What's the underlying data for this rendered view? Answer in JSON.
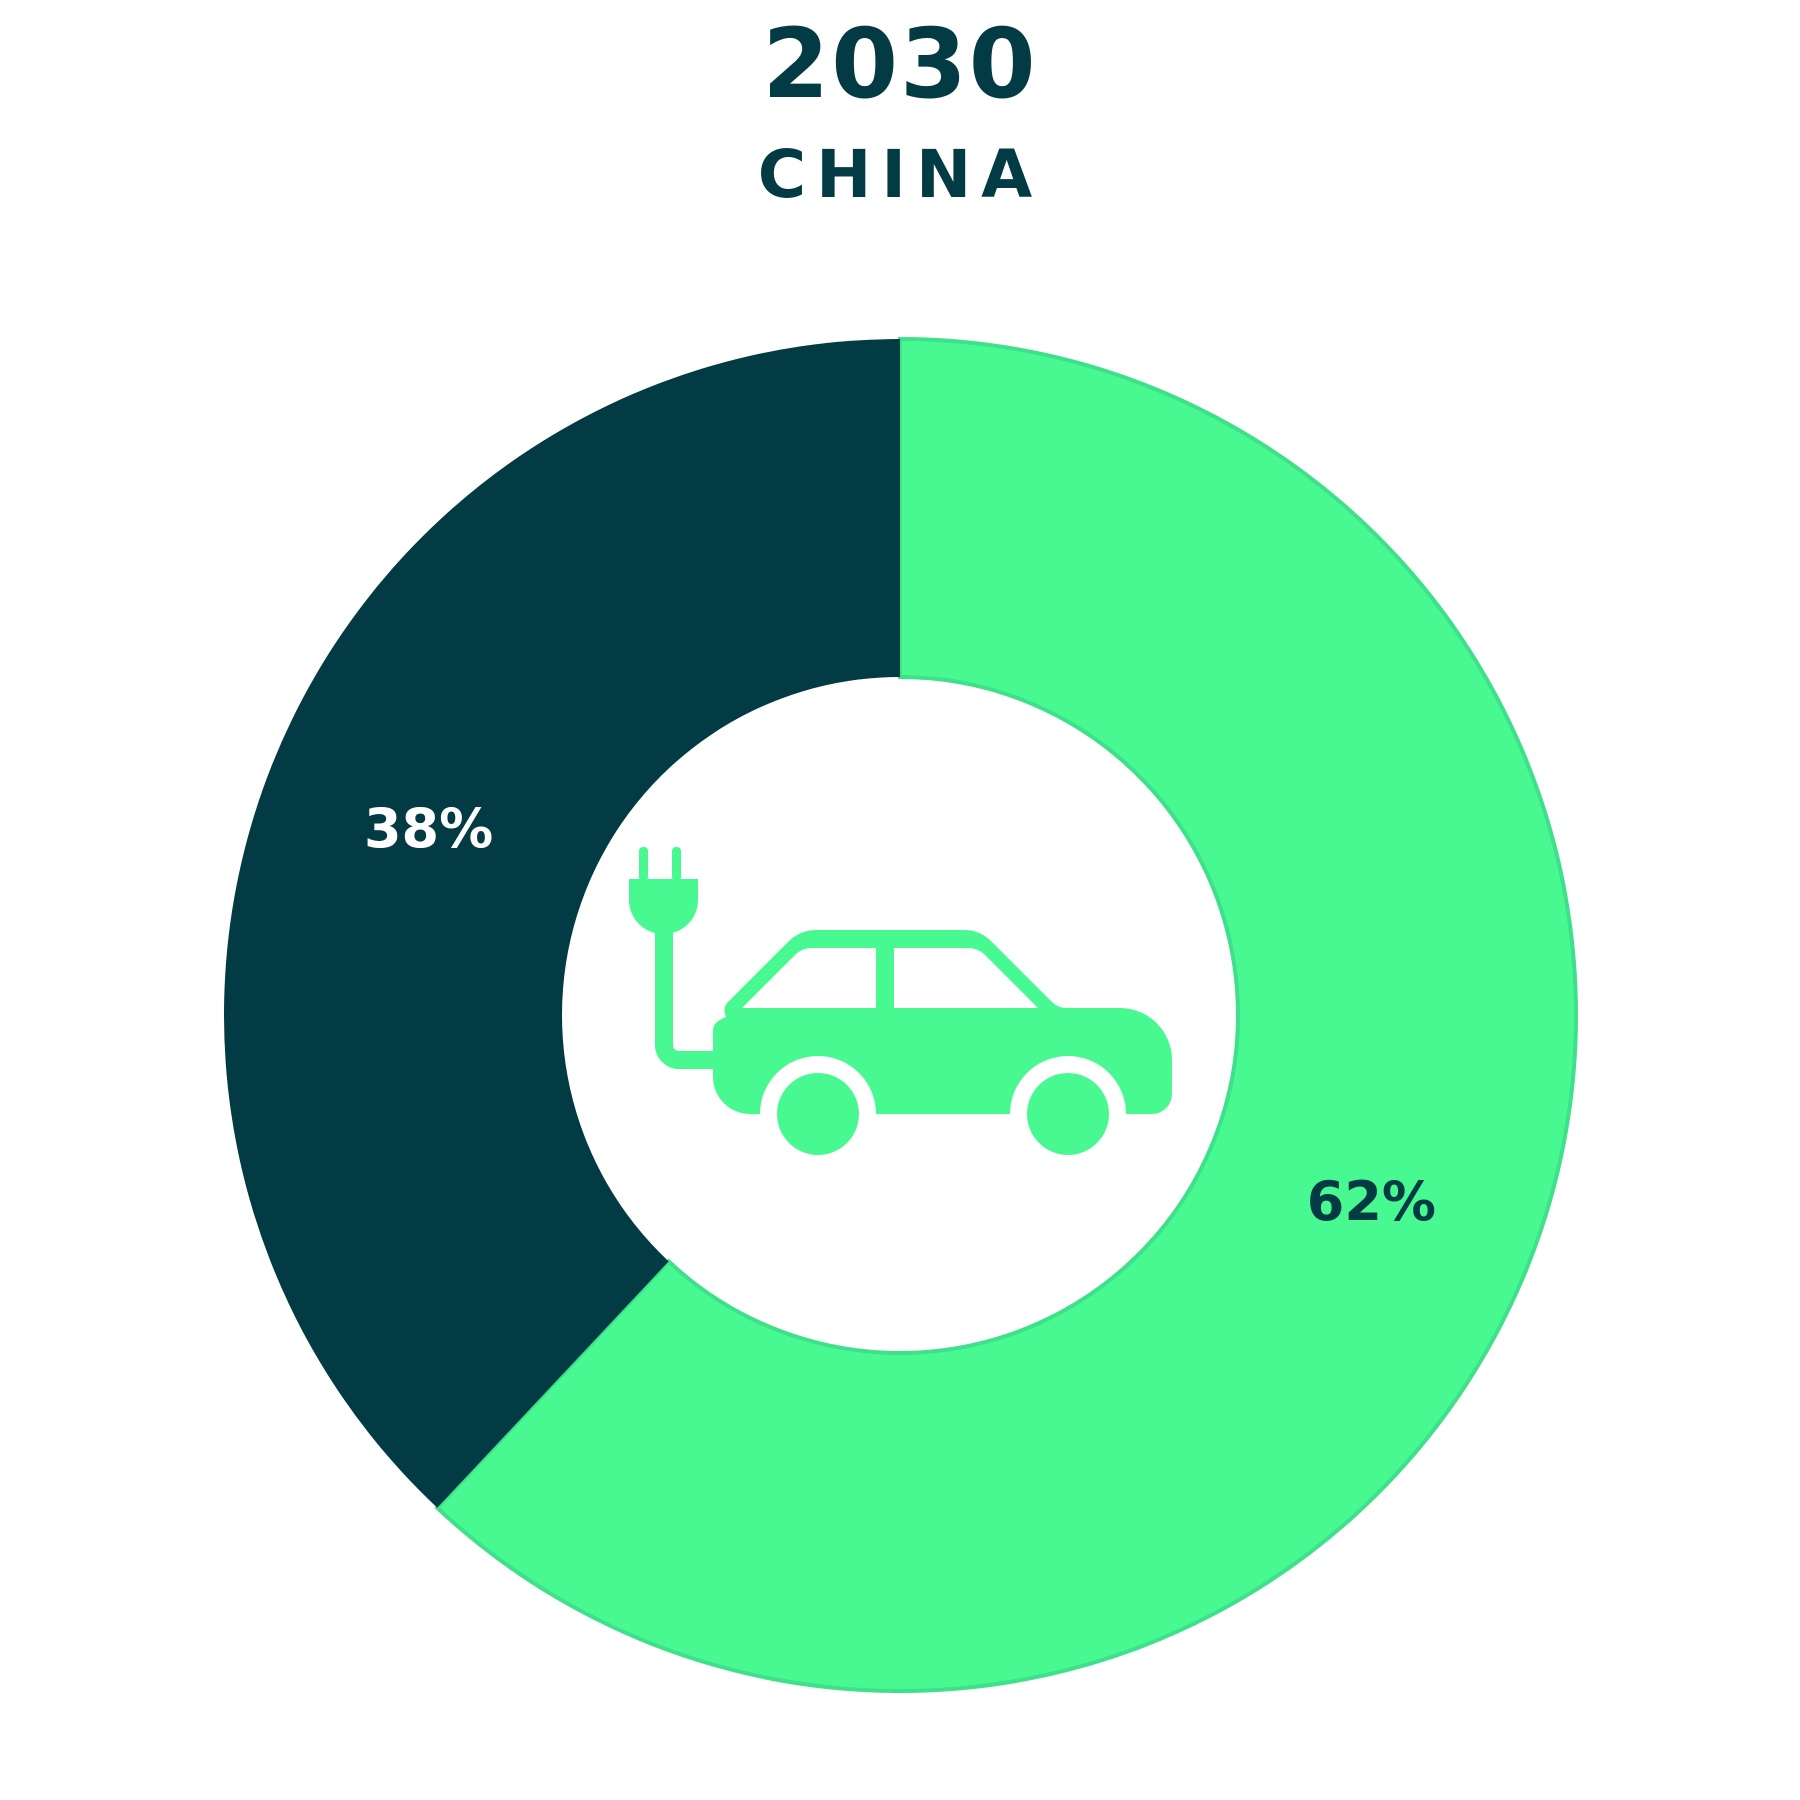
{
  "chart_data": {
    "type": "pie",
    "title": "2030",
    "subtitle": "CHINA",
    "donut": true,
    "start_angle_deg": 0,
    "direction": "clockwise",
    "slices": [
      {
        "label": "62%",
        "value": 62,
        "color": "#48f992",
        "label_color": "#023b43"
      },
      {
        "label": "38%",
        "value": 38,
        "color": "#023b43",
        "label_color": "#ffffff"
      }
    ]
  },
  "center_icon": {
    "name": "electric-car-plug-icon",
    "color": "#48f992"
  },
  "colors": {
    "text": "#023b43",
    "ring_stroke": "#3ee08a",
    "background": "#ffffff"
  }
}
